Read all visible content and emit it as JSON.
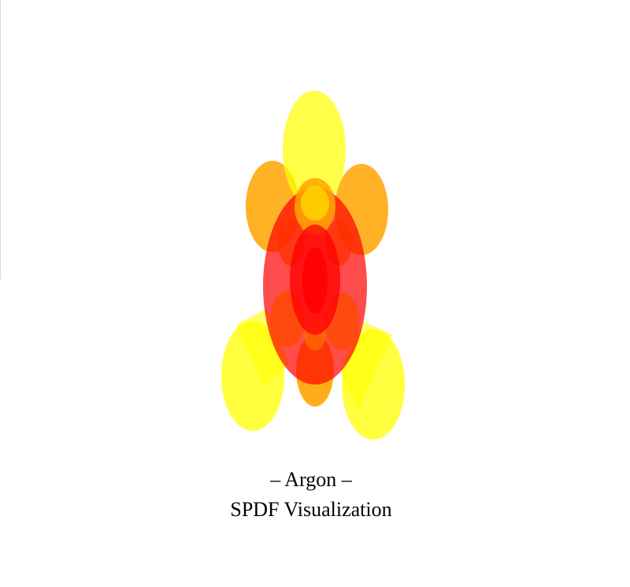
{
  "caption": {
    "line1": "– Argon –",
    "line2": "SPDF Visualization"
  },
  "colors": {
    "background": "#ffffff",
    "yellow": "#ffff00",
    "orange": "#ffa500",
    "red": "#ff0000"
  }
}
